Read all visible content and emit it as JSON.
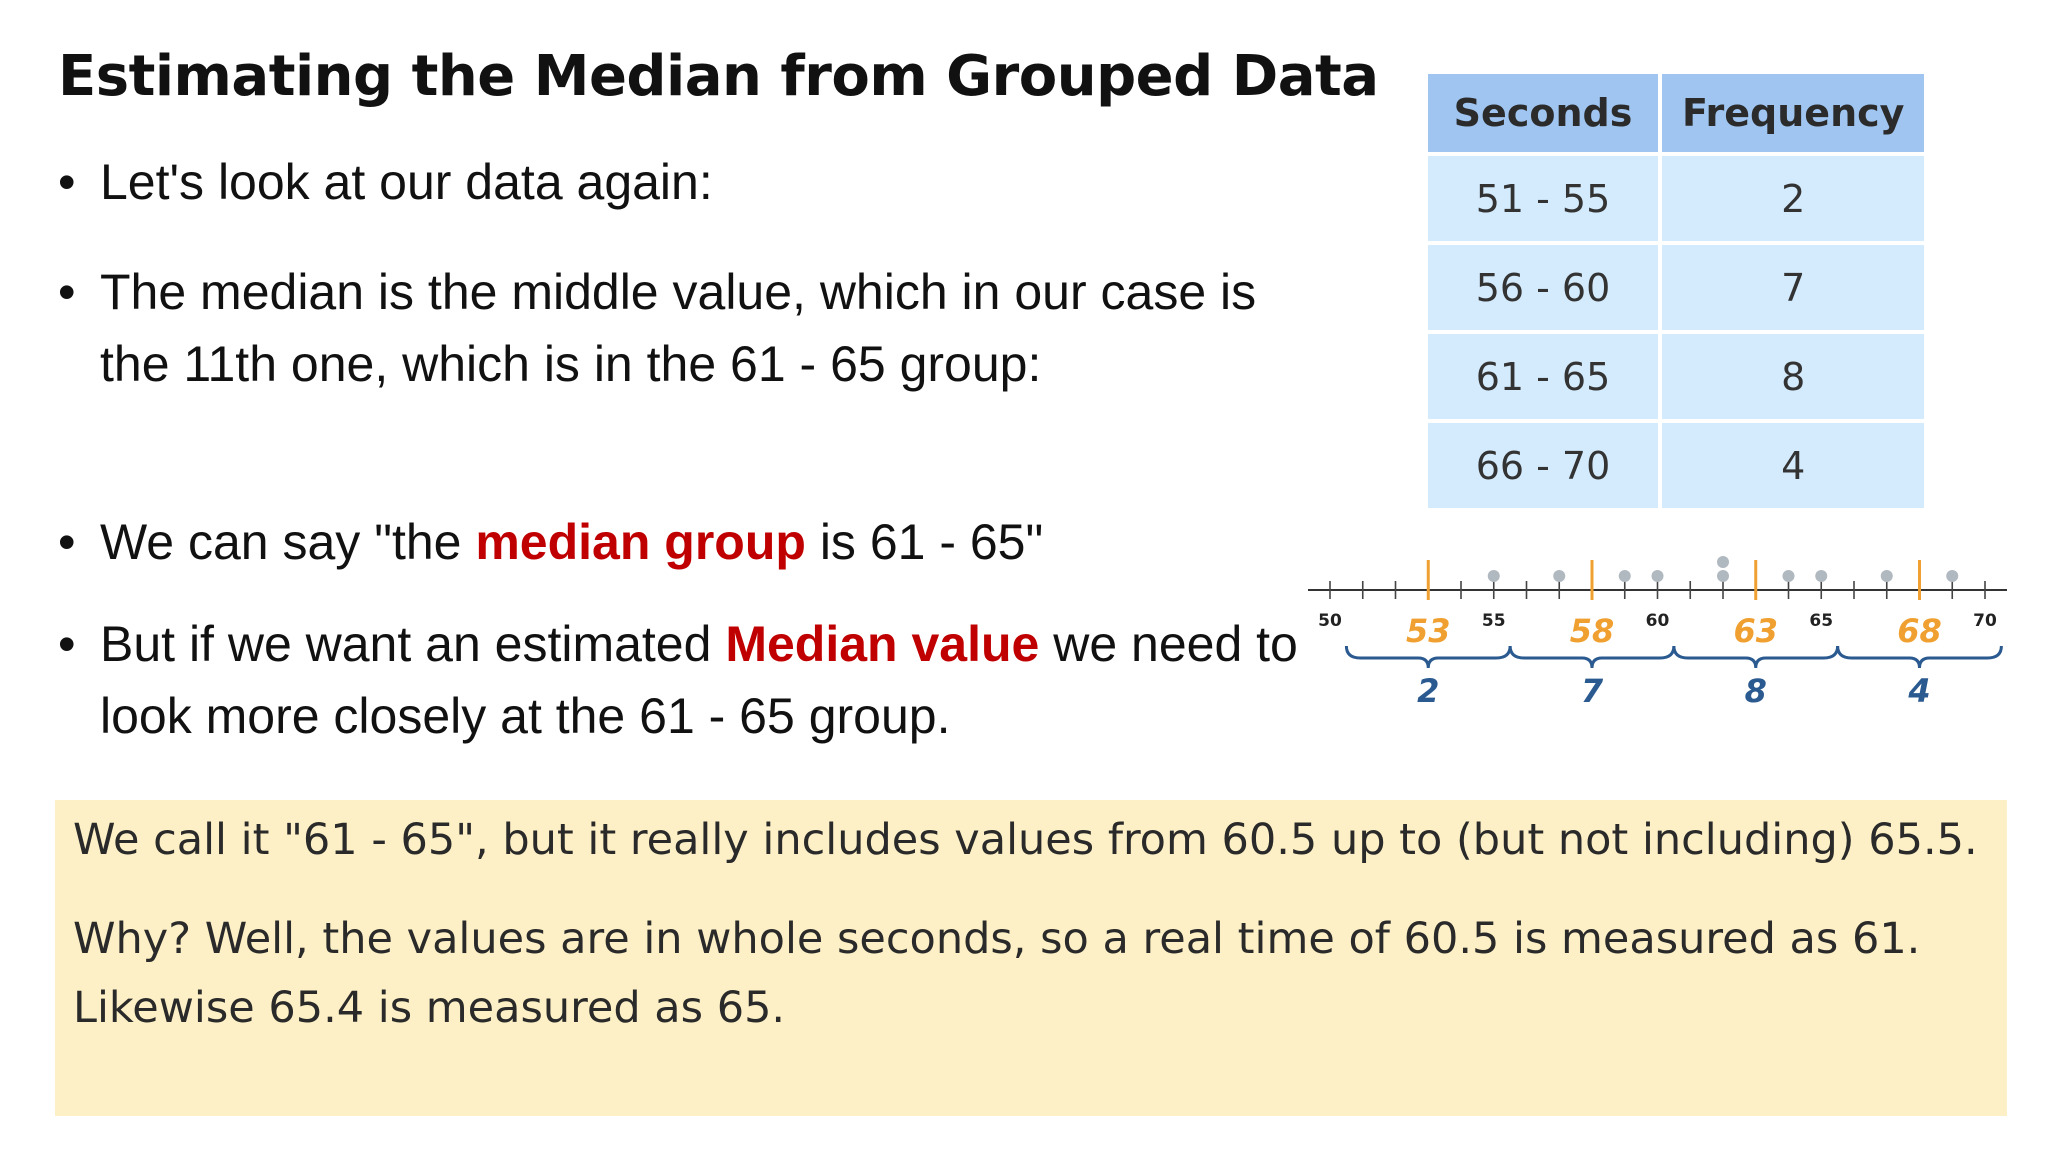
{
  "slide": {
    "title": "Estimating the Median from Grouped Data",
    "bullets": [
      {
        "segments": [
          {
            "text": "Let's look at our data again:"
          }
        ]
      },
      {
        "segments": [
          {
            "text": "The median is the middle value, which in our case is the 11th one, which is in the 61 - 65 group:"
          }
        ]
      },
      {
        "segments": [
          {
            "text": "We can say \"the "
          },
          {
            "text": "median group",
            "highlight": true
          },
          {
            "text": " is 61 - 65\""
          }
        ]
      },
      {
        "segments": [
          {
            "text": "But if we want an estimated "
          },
          {
            "text": "Median value",
            "highlight": true
          },
          {
            "text": " we need to look more closely at the 61 - 65 group."
          }
        ]
      }
    ],
    "bullet_char": "•",
    "highlight_color": "#c00000"
  },
  "frequency_table": {
    "headers": [
      "Seconds",
      "Frequency"
    ],
    "rows": [
      [
        "51 - 55",
        "2"
      ],
      [
        "56 - 60",
        "7"
      ],
      [
        "61 - 65",
        "8"
      ],
      [
        "66 - 70",
        "4"
      ]
    ],
    "header_color": "#9fc5f0",
    "cell_color": "#d4ebfd"
  },
  "number_line": {
    "min": 50,
    "max": 70,
    "tick_labels": [
      "50",
      "55",
      "60",
      "65",
      "70"
    ],
    "group_midpoints": [
      "53",
      "58",
      "63",
      "68"
    ],
    "group_counts": [
      "2",
      "7",
      "8",
      "4"
    ],
    "midpoint_color": "#f0a030",
    "brace_color": "#2a5a90",
    "dot_color": "#b0b8c0"
  },
  "callout": {
    "paragraphs": [
      "We call it \"61 - 65\", but it really includes values from 60.5 up to (but not including) 65.5.",
      "Why? Well, the values are in whole seconds, so a real time of 60.5 is measured as 61. Likewise 65.4 is measured as 65."
    ],
    "background": "#fdf0c6"
  }
}
